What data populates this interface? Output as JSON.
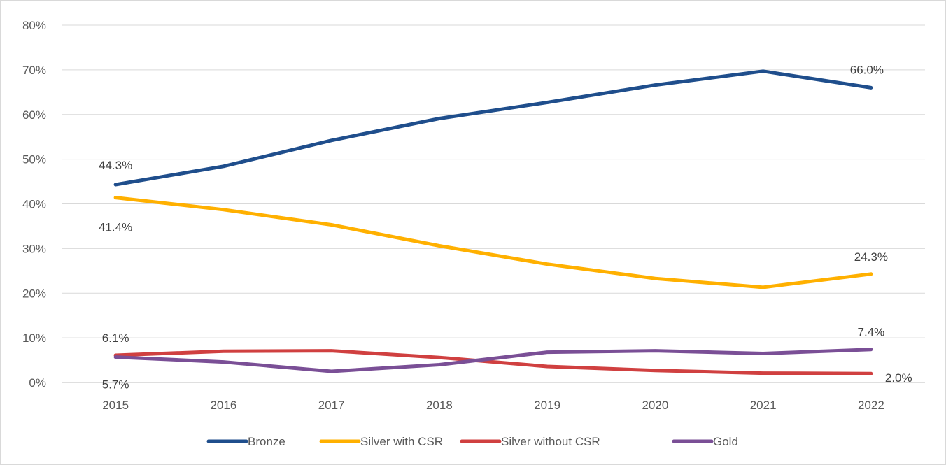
{
  "chart_data": {
    "type": "line",
    "title": "",
    "xlabel": "",
    "ylabel": "",
    "categories": [
      "2015",
      "2016",
      "2017",
      "2018",
      "2019",
      "2020",
      "2021",
      "2022"
    ],
    "ylim": [
      0,
      80
    ],
    "y_ticks": [
      0,
      10,
      20,
      30,
      40,
      50,
      60,
      70,
      80
    ],
    "y_tick_labels": [
      "0%",
      "10%",
      "20%",
      "30%",
      "40%",
      "50%",
      "60%",
      "70%",
      "80%"
    ],
    "grid": true,
    "legend_position": "bottom",
    "series": [
      {
        "name": "Bronze",
        "color": "#1f4e8c",
        "values": [
          44.3,
          48.4,
          54.2,
          59.1,
          62.7,
          66.6,
          69.7,
          66.0
        ]
      },
      {
        "name": "Silver with CSR",
        "color": "#ffb000",
        "values": [
          41.4,
          38.7,
          35.3,
          30.6,
          26.5,
          23.3,
          21.3,
          24.3
        ]
      },
      {
        "name": "Silver without CSR",
        "color": "#d04040",
        "values": [
          6.1,
          7.0,
          7.1,
          5.6,
          3.6,
          2.7,
          2.1,
          2.0
        ]
      },
      {
        "name": "Gold",
        "color": "#7a4f96",
        "values": [
          5.7,
          4.6,
          2.5,
          4.0,
          6.8,
          7.1,
          6.5,
          7.4
        ]
      }
    ],
    "data_labels": [
      {
        "series": "Bronze",
        "x": "2015",
        "text": "44.3%"
      },
      {
        "series": "Bronze",
        "x": "2022",
        "text": "66.0%"
      },
      {
        "series": "Silver with CSR",
        "x": "2015",
        "text": "41.4%"
      },
      {
        "series": "Silver with CSR",
        "x": "2022",
        "text": "24.3%"
      },
      {
        "series": "Silver without CSR",
        "x": "2015",
        "text": "6.1%"
      },
      {
        "series": "Silver without CSR",
        "x": "2022",
        "text": "2.0%"
      },
      {
        "series": "Gold",
        "x": "2015",
        "text": "5.7%"
      },
      {
        "series": "Gold",
        "x": "2022",
        "text": "7.4%"
      }
    ]
  }
}
